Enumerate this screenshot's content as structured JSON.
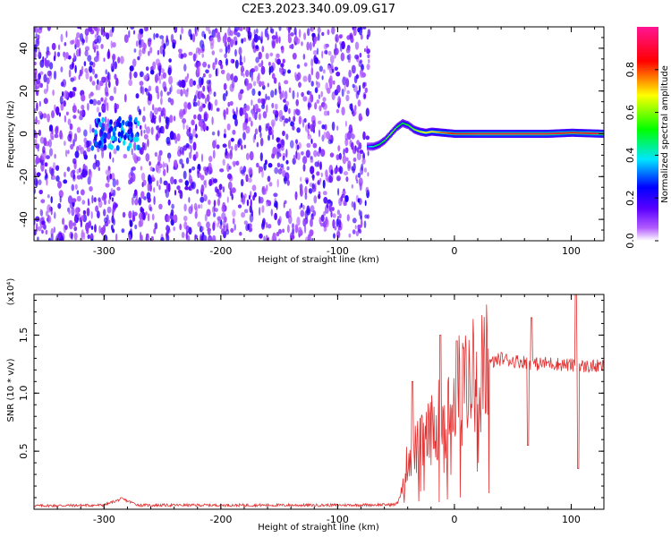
{
  "title": "C2E3.2023.340.09.09.G17",
  "colors": {
    "snr_line": "#e03030",
    "spectrogram_ridge": "#ff2020",
    "colormap": [
      "#ffffff",
      "#9b30ff",
      "#0000ff",
      "#00e5ff",
      "#00ff00",
      "#ffff00",
      "#ff0000",
      "#ff1493"
    ]
  },
  "chart_data": [
    {
      "type": "heatmap",
      "name": "spectrogram",
      "xlabel": "Height of straight line (km)",
      "ylabel": "Frequency (Hz)",
      "xlim": [
        -360,
        128
      ],
      "ylim": [
        -50,
        50
      ],
      "xticks": [
        -300,
        -200,
        -100,
        0,
        100
      ],
      "yticks": [
        -40,
        -20,
        0,
        20,
        40
      ],
      "xtick_labels": [
        "-300",
        "-200",
        "-100",
        "0",
        "100"
      ],
      "ytick_labels": [
        "-40",
        "-20",
        "0",
        "20",
        "40"
      ],
      "noise_region": {
        "x_range": [
          -360,
          -73
        ],
        "freq_range": [
          -50,
          50
        ]
      },
      "ridge": {
        "x": [
          -75,
          -70,
          -65,
          -60,
          -55,
          -50,
          -45,
          -40,
          -35,
          -30,
          -25,
          -20,
          -10,
          0,
          20,
          50,
          80,
          100,
          128
        ],
        "freq": [
          -6,
          -6,
          -5,
          -3,
          0,
          3,
          5,
          4,
          2,
          1,
          0.5,
          1,
          0.5,
          0,
          0,
          0,
          0,
          0.5,
          0
        ],
        "amplitude": [
          0.3,
          0.45,
          0.5,
          0.55,
          0.6,
          0.55,
          0.5,
          0.55,
          0.6,
          0.65,
          0.7,
          0.7,
          0.8,
          0.85,
          0.9,
          0.9,
          0.9,
          0.85,
          0.9
        ]
      }
    },
    {
      "type": "line",
      "name": "snr",
      "xlabel": "Height of straight line (km)",
      "ylabel": "SNR (10 * v/v)",
      "scale_label": "(x10⁴)",
      "xlim": [
        -360,
        128
      ],
      "ylim": [
        0,
        18500
      ],
      "xticks": [
        -300,
        -200,
        -100,
        0,
        100
      ],
      "yticks": [
        5000,
        10000,
        15000
      ],
      "xtick_labels": [
        "-300",
        "-200",
        "-100",
        "0",
        "100"
      ],
      "ytick_labels": [
        "0.5",
        "1.0",
        "1.5"
      ],
      "envelope": {
        "x": [
          -360,
          -300,
          -285,
          -270,
          -200,
          -100,
          -50,
          -45,
          -42,
          -40,
          -35,
          -30,
          -25,
          -20,
          -15,
          -10,
          -5,
          0,
          10,
          20,
          30,
          40,
          50,
          60,
          70,
          80,
          90,
          100,
          110,
          128
        ],
        "y": [
          300,
          350,
          900,
          350,
          350,
          350,
          400,
          1500,
          3000,
          4500,
          5000,
          5500,
          6000,
          6800,
          7500,
          8500,
          9500,
          10500,
          11000,
          11800,
          12500,
          13000,
          12800,
          12700,
          12500,
          12600,
          12500,
          12400,
          12300,
          12300
        ]
      },
      "spikes": [
        {
          "x": -36,
          "y": 11000
        },
        {
          "x": -12,
          "y": 15000
        },
        {
          "x": 2,
          "y": 14500
        },
        {
          "x": 63,
          "y": 5500
        },
        {
          "x": 66,
          "y": 16500
        },
        {
          "x": 104,
          "y": 18500
        },
        {
          "x": 106,
          "y": 3500
        }
      ],
      "colorbar": {
        "label": "Normalized spectral amplitude",
        "ticks": [
          0.0,
          0.2,
          0.4,
          0.6,
          0.8
        ],
        "tick_labels": [
          "0.0",
          "0.2",
          "0.4",
          "0.6",
          "0.8"
        ],
        "range": [
          0,
          1
        ]
      }
    }
  ]
}
